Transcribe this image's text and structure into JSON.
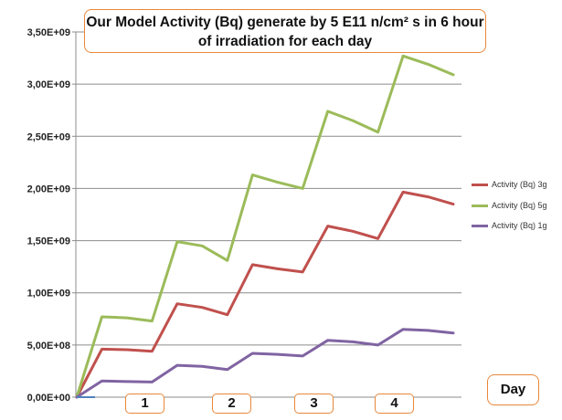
{
  "chart_data": {
    "type": "line",
    "title": "Our Model Activity (Bq) generate by 5 E11 n/cm² s in 6 hour of irradiation for each day",
    "xlabel": "Day",
    "ylabel": "",
    "ylim": [
      0,
      3500000000
    ],
    "yticks": [
      "0,00E+00",
      "5,00E+08",
      "1,00E+09",
      "1,50E+09",
      "2,00E+09",
      "2,50E+09",
      "3,00E+09",
      "3,50E+09"
    ],
    "x_category_labels": [
      "1",
      "2",
      "3",
      "4"
    ],
    "grid": "horizontal",
    "legend_position": "right",
    "series": [
      {
        "name": "Activity (Bq) 3g",
        "color": "#c0504d",
        "values": [
          0,
          460000000,
          455000000,
          440000000,
          895000000,
          860000000,
          790000000,
          1270000000,
          1230000000,
          1200000000,
          1640000000,
          1590000000,
          1520000000,
          1965000000,
          1920000000,
          1850000000
        ]
      },
      {
        "name": "Activity (Bq) 5g",
        "color": "#9bbb59",
        "values": [
          0,
          770000000,
          760000000,
          730000000,
          1490000000,
          1450000000,
          1310000000,
          2130000000,
          2060000000,
          2000000000,
          2740000000,
          2650000000,
          2540000000,
          3270000000,
          3190000000,
          3090000000
        ]
      },
      {
        "name": "Activity (Bq) 1g",
        "color": "#8064a2",
        "values": [
          0,
          155000000,
          150000000,
          145000000,
          305000000,
          295000000,
          265000000,
          420000000,
          410000000,
          395000000,
          545000000,
          530000000,
          500000000,
          650000000,
          640000000,
          615000000
        ]
      }
    ]
  }
}
